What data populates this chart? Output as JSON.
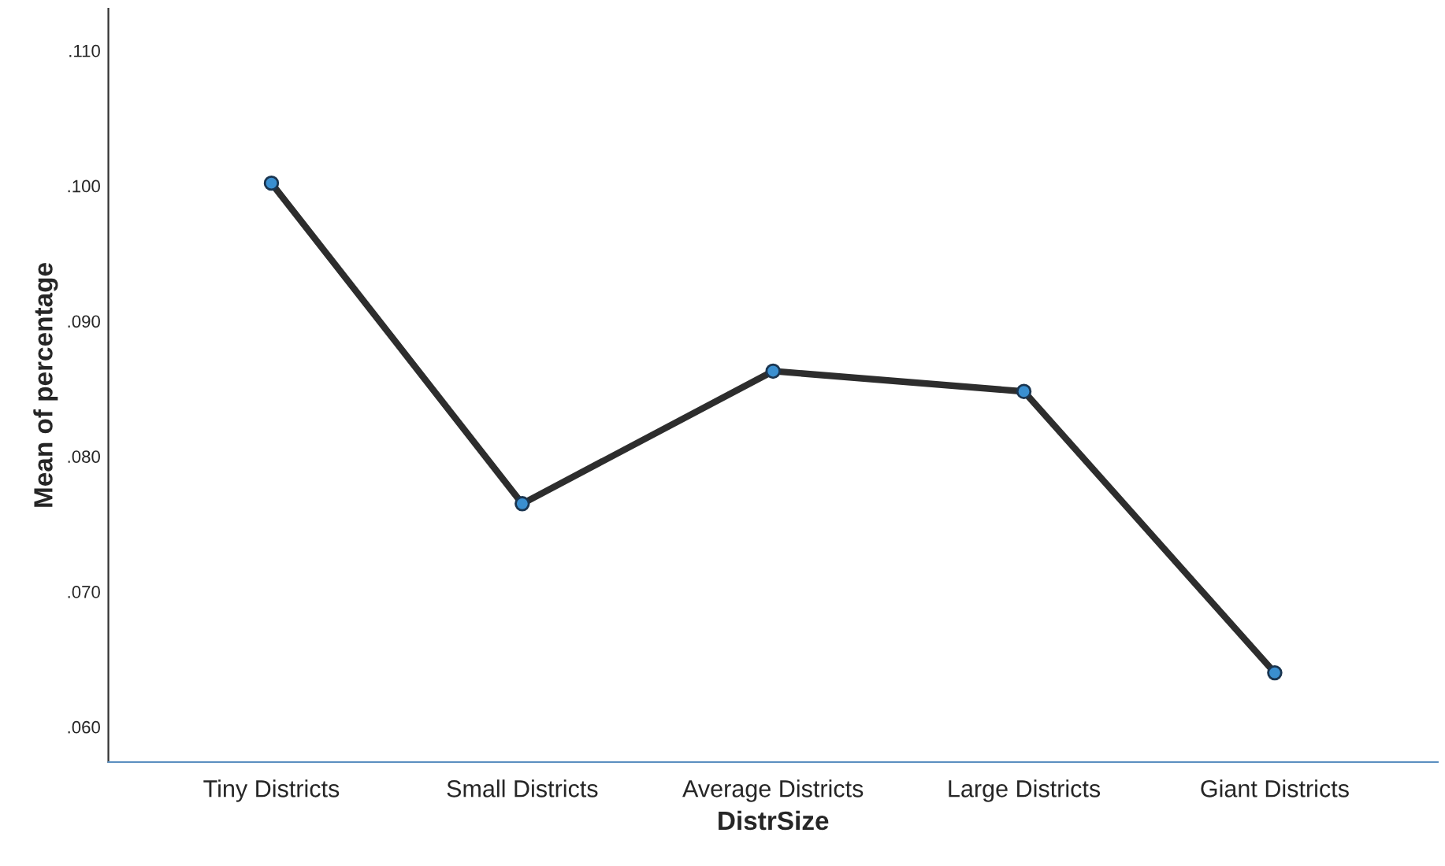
{
  "chart_data": {
    "type": "line",
    "xlabel": "DistrSize",
    "ylabel": "Mean of percentage",
    "categories": [
      "Tiny Districts",
      "Small Districts",
      "Average Districts",
      "Large Districts",
      "Giant Districts"
    ],
    "series": [
      {
        "color": "#2d2d2d",
        "values": [
          0.1002,
          0.0765,
          0.0863,
          0.0848,
          0.064
        ]
      }
    ],
    "marker": "circle",
    "line_style": "solid",
    "ylim": [
      0.0574,
      0.1131
    ],
    "yticks": [
      {
        "value": 0.06,
        "label": ".060"
      },
      {
        "value": 0.07,
        "label": ".070"
      },
      {
        "value": 0.08,
        "label": ".080"
      },
      {
        "value": 0.09,
        "label": ".090"
      },
      {
        "value": 0.1,
        "label": ".100"
      },
      {
        "value": 0.11,
        "label": ".110"
      }
    ]
  }
}
